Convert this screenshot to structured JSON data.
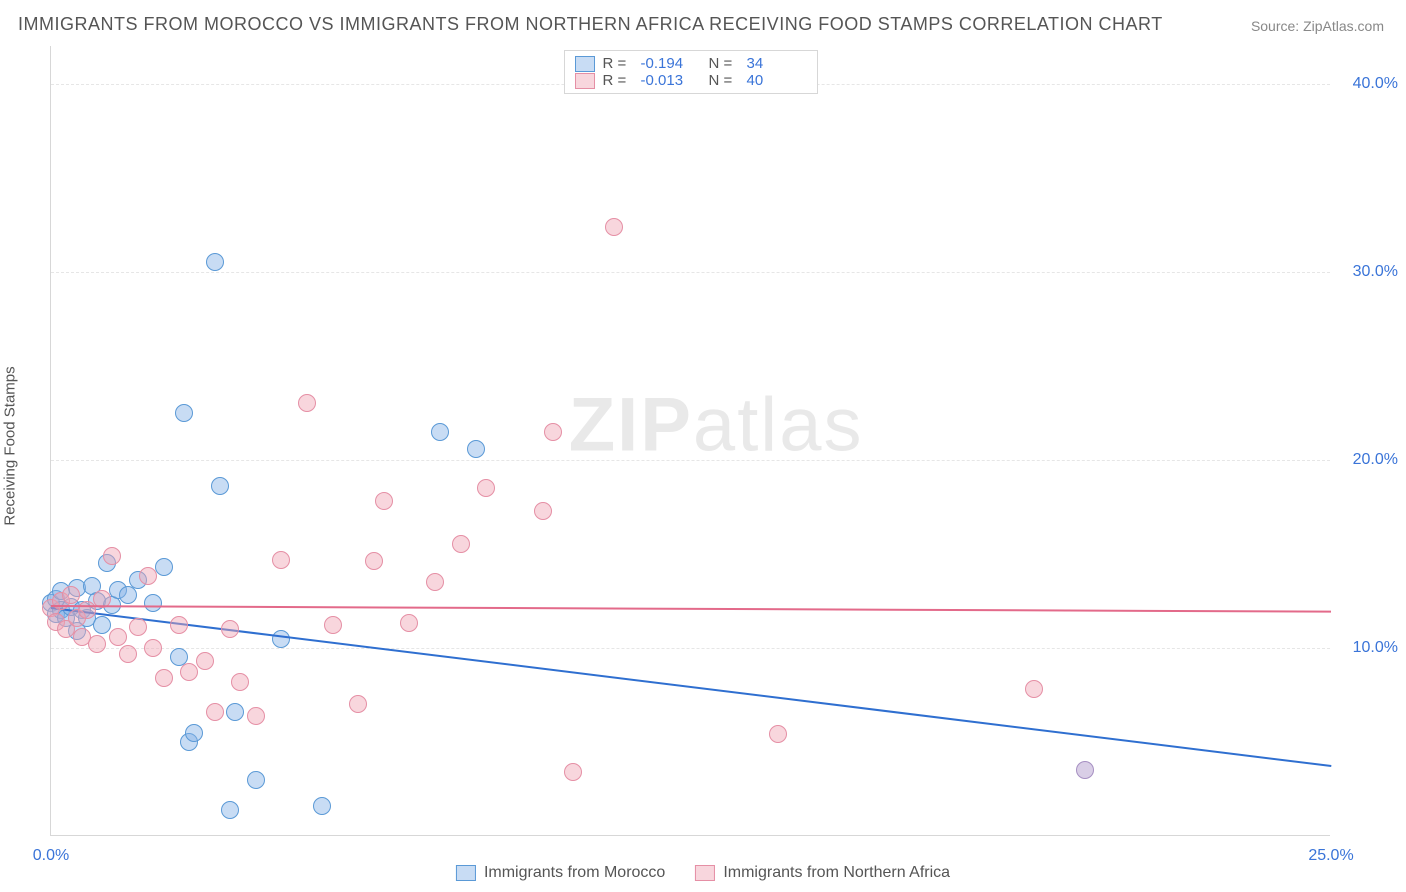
{
  "title": "IMMIGRANTS FROM MOROCCO VS IMMIGRANTS FROM NORTHERN AFRICA RECEIVING FOOD STAMPS CORRELATION CHART",
  "source_label": "Source: ",
  "source_name": "ZipAtlas.com",
  "yaxis_label": "Receiving Food Stamps",
  "watermark_zip": "ZIP",
  "watermark_atlas": "atlas",
  "chart": {
    "type": "scatter",
    "background_color": "#ffffff",
    "grid_color": "#e6e6e6",
    "axis_color": "#d7d7d7",
    "tick_color": "#3a74d8",
    "tick_fontsize": 16,
    "xlim": [
      0,
      25
    ],
    "ylim": [
      0,
      42
    ],
    "yticks": [
      10,
      20,
      30,
      40
    ],
    "ytick_labels": [
      "10.0%",
      "20.0%",
      "30.0%",
      "40.0%"
    ],
    "xticks": [
      0,
      25
    ],
    "xtick_labels": [
      "0.0%",
      "25.0%"
    ],
    "marker_diameter": 18,
    "marker_border_width": 1.5,
    "line_width": 2,
    "series": [
      {
        "name": "Immigrants from Morocco",
        "fill": "rgba(133,178,231,0.45)",
        "stroke": "#5a99d6",
        "line_color": "#2f6fd0",
        "R": "-0.194",
        "N": "34",
        "trend": {
          "x1": 0,
          "y1": 12.2,
          "x2": 25,
          "y2": 3.8
        },
        "points": [
          [
            0.0,
            12.4
          ],
          [
            0.1,
            11.8
          ],
          [
            0.1,
            12.6
          ],
          [
            0.2,
            12.0
          ],
          [
            0.2,
            13.0
          ],
          [
            0.3,
            11.6
          ],
          [
            0.4,
            12.2
          ],
          [
            0.5,
            10.9
          ],
          [
            0.5,
            13.2
          ],
          [
            0.6,
            12.0
          ],
          [
            0.7,
            11.6
          ],
          [
            0.8,
            13.3
          ],
          [
            0.9,
            12.5
          ],
          [
            1.0,
            11.2
          ],
          [
            1.1,
            14.5
          ],
          [
            1.2,
            12.3
          ],
          [
            1.3,
            13.1
          ],
          [
            1.5,
            12.8
          ],
          [
            1.7,
            13.6
          ],
          [
            2.0,
            12.4
          ],
          [
            2.2,
            14.3
          ],
          [
            2.5,
            9.5
          ],
          [
            2.6,
            22.5
          ],
          [
            2.7,
            5.0
          ],
          [
            2.8,
            5.5
          ],
          [
            3.2,
            30.5
          ],
          [
            3.3,
            18.6
          ],
          [
            3.5,
            1.4
          ],
          [
            3.6,
            6.6
          ],
          [
            4.5,
            10.5
          ],
          [
            5.3,
            1.6
          ],
          [
            4.0,
            3.0
          ],
          [
            7.6,
            21.5
          ],
          [
            8.3,
            20.6
          ]
        ]
      },
      {
        "name": "Immigrants from Northern Africa",
        "fill": "rgba(240,163,180,0.45)",
        "stroke": "#e58fa5",
        "line_color": "#e36a8a",
        "R": "-0.013",
        "N": "40",
        "trend": {
          "x1": 0,
          "y1": 12.3,
          "x2": 25,
          "y2": 12.0
        },
        "points": [
          [
            0.0,
            12.1
          ],
          [
            0.1,
            11.4
          ],
          [
            0.2,
            12.5
          ],
          [
            0.3,
            11.0
          ],
          [
            0.4,
            12.8
          ],
          [
            0.5,
            11.6
          ],
          [
            0.6,
            10.6
          ],
          [
            0.7,
            12.0
          ],
          [
            0.9,
            10.2
          ],
          [
            1.0,
            12.6
          ],
          [
            1.2,
            14.9
          ],
          [
            1.3,
            10.6
          ],
          [
            1.5,
            9.7
          ],
          [
            1.7,
            11.1
          ],
          [
            1.9,
            13.8
          ],
          [
            2.0,
            10.0
          ],
          [
            2.2,
            8.4
          ],
          [
            2.5,
            11.2
          ],
          [
            2.7,
            8.7
          ],
          [
            3.0,
            9.3
          ],
          [
            3.2,
            6.6
          ],
          [
            3.5,
            11.0
          ],
          [
            3.7,
            8.2
          ],
          [
            4.0,
            6.4
          ],
          [
            4.5,
            14.7
          ],
          [
            5.0,
            23.0
          ],
          [
            5.5,
            11.2
          ],
          [
            6.0,
            7.0
          ],
          [
            6.3,
            14.6
          ],
          [
            6.5,
            17.8
          ],
          [
            7.0,
            11.3
          ],
          [
            7.5,
            13.5
          ],
          [
            8.0,
            15.5
          ],
          [
            8.5,
            18.5
          ],
          [
            9.6,
            17.3
          ],
          [
            9.8,
            21.5
          ],
          [
            10.2,
            3.4
          ],
          [
            11.0,
            32.4
          ],
          [
            14.2,
            5.4
          ],
          [
            19.2,
            7.8
          ]
        ]
      },
      {
        "name": "overlap",
        "fill": "rgba(185,165,210,0.55)",
        "stroke": "#a68fc2",
        "points": [
          [
            20.2,
            3.5
          ]
        ]
      }
    ]
  },
  "legend_top": {
    "R_label": "R =",
    "N_label": "N ="
  },
  "legend_bottom": {
    "series1": "Immigrants from Morocco",
    "series2": "Immigrants from Northern Africa"
  }
}
